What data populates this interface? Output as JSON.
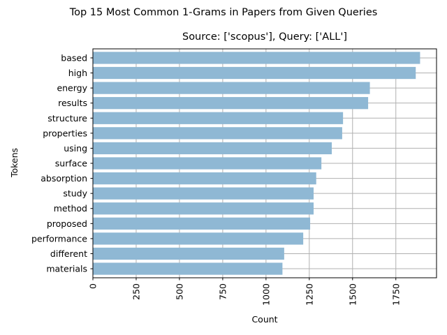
{
  "figure": {
    "suptitle": "Top 15 Most Common 1-Grams in Papers from Given Queries"
  },
  "chart_data": {
    "type": "bar",
    "orientation": "horizontal",
    "title": "Source: ['scopus'], Query: ['ALL']",
    "xlabel": "Count",
    "ylabel": "Tokens",
    "categories": [
      "based",
      "high",
      "energy",
      "results",
      "structure",
      "properties",
      "using",
      "surface",
      "absorption",
      "study",
      "method",
      "proposed",
      "performance",
      "different",
      "materials"
    ],
    "values": [
      1890,
      1865,
      1600,
      1590,
      1445,
      1440,
      1380,
      1320,
      1290,
      1275,
      1275,
      1255,
      1215,
      1105,
      1095
    ],
    "xlim": [
      0,
      1985
    ],
    "xticks": [
      0,
      250,
      500,
      750,
      1000,
      1250,
      1500,
      1750
    ],
    "xtick_labels": [
      "0",
      "250",
      "500",
      "750",
      "1000",
      "1250",
      "1500",
      "1750"
    ],
    "xtick_rotation": 90,
    "grid": true,
    "bar_color": "#8fb8d4",
    "grid_color": "#b0b0b0"
  }
}
